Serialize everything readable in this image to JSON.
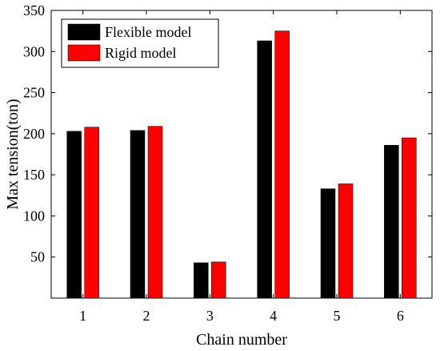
{
  "chart_data": {
    "type": "bar",
    "categories": [
      "1",
      "2",
      "3",
      "4",
      "5",
      "6"
    ],
    "xlabel": "Chain number",
    "ylabel": "Max tension(ton)",
    "ylim": [
      0,
      350
    ],
    "yticks": [
      50,
      100,
      150,
      200,
      250,
      300,
      350
    ],
    "grid": false,
    "legend_position": "top-left",
    "series": [
      {
        "name": "Flexible model",
        "color": "#000000",
        "values": [
          203,
          204,
          43,
          313,
          133,
          186
        ]
      },
      {
        "name": "Rigid model",
        "color": "#ff0000",
        "values": [
          208,
          209,
          44,
          325,
          139,
          195
        ]
      }
    ]
  }
}
